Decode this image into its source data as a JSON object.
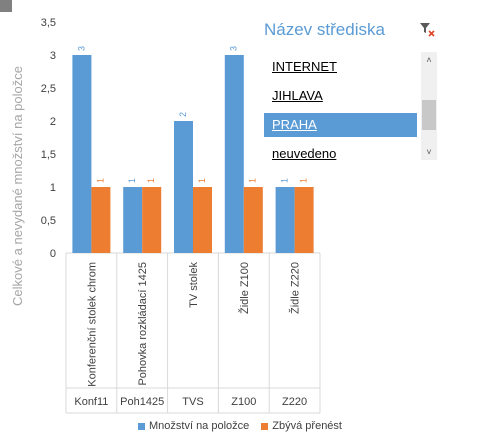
{
  "chart_data": {
    "type": "bar",
    "ylabel": "Celkové a nevydané množství na položce",
    "ylim": [
      0,
      3.5
    ],
    "yticks": [
      "0",
      "0,5",
      "1",
      "1,5",
      "2",
      "2,5",
      "3",
      "3,5"
    ],
    "grid": false,
    "legend_position": "bottom",
    "categories": [
      {
        "label": "Konferenční stolek chrom",
        "group": "Konf11"
      },
      {
        "label": "Pohovka rozkládací 1425",
        "group": "Poh1425"
      },
      {
        "label": "TV stolek",
        "group": "TVS"
      },
      {
        "label": "Židle Z100",
        "group": "Z100"
      },
      {
        "label": "Židle Z220",
        "group": "Z220"
      }
    ],
    "series": [
      {
        "name": "Množství na položce",
        "color": "#5b9bd5",
        "values": [
          3,
          1,
          2,
          3,
          1
        ]
      },
      {
        "name": "Zbývá přenést",
        "color": "#ed7d31",
        "values": [
          1,
          1,
          1,
          1,
          1
        ]
      }
    ]
  },
  "slicer": {
    "title": "Název střediska",
    "filter_icon": "clear-filter-icon",
    "items": [
      {
        "label": "INTERNET",
        "selected": false
      },
      {
        "label": "JIHLAVA",
        "selected": false
      },
      {
        "label": "PRAHA",
        "selected": true
      },
      {
        "label": "neuvedeno",
        "selected": false
      }
    ],
    "scroll_up": "˄",
    "scroll_down": "˅"
  }
}
